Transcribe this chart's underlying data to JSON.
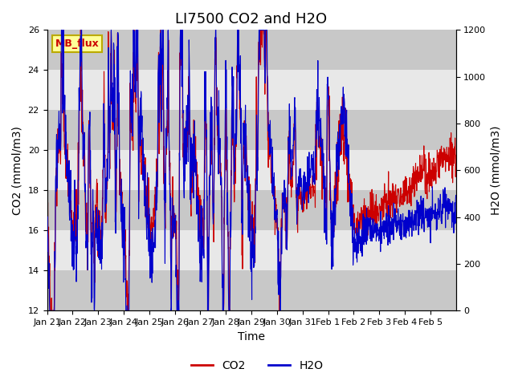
{
  "title": "LI7500 CO2 and H2O",
  "xlabel": "Time",
  "ylabel_left": "CO2 (mmol/m3)",
  "ylabel_right": "H2O (mmol/m3)",
  "ylim_left": [
    12,
    26
  ],
  "ylim_right": [
    0,
    1200
  ],
  "yticks_left": [
    12,
    14,
    16,
    18,
    20,
    22,
    24,
    26
  ],
  "yticks_right": [
    0,
    200,
    400,
    600,
    800,
    1000,
    1200
  ],
  "xtick_labels": [
    "Jan 21",
    "Jan 22",
    "Jan 23",
    "Jan 24",
    "Jan 25",
    "Jan 26",
    "Jan 27",
    "Jan 28",
    "Jan 29",
    "Jan 30",
    "Jan 31",
    "Feb 1",
    "Feb 2",
    "Feb 3",
    "Feb 4",
    "Feb 5"
  ],
  "color_co2": "#cc0000",
  "color_h2o": "#0000cc",
  "background_color": "#ffffff",
  "plot_bg_color": "#e8e8e8",
  "label_box_text": "MB_flux",
  "label_box_facecolor": "#ffff99",
  "label_box_edgecolor": "#bbaa00",
  "legend_labels": [
    "CO2",
    "H2O"
  ],
  "title_fontsize": 13,
  "axis_label_fontsize": 10,
  "tick_fontsize": 8
}
